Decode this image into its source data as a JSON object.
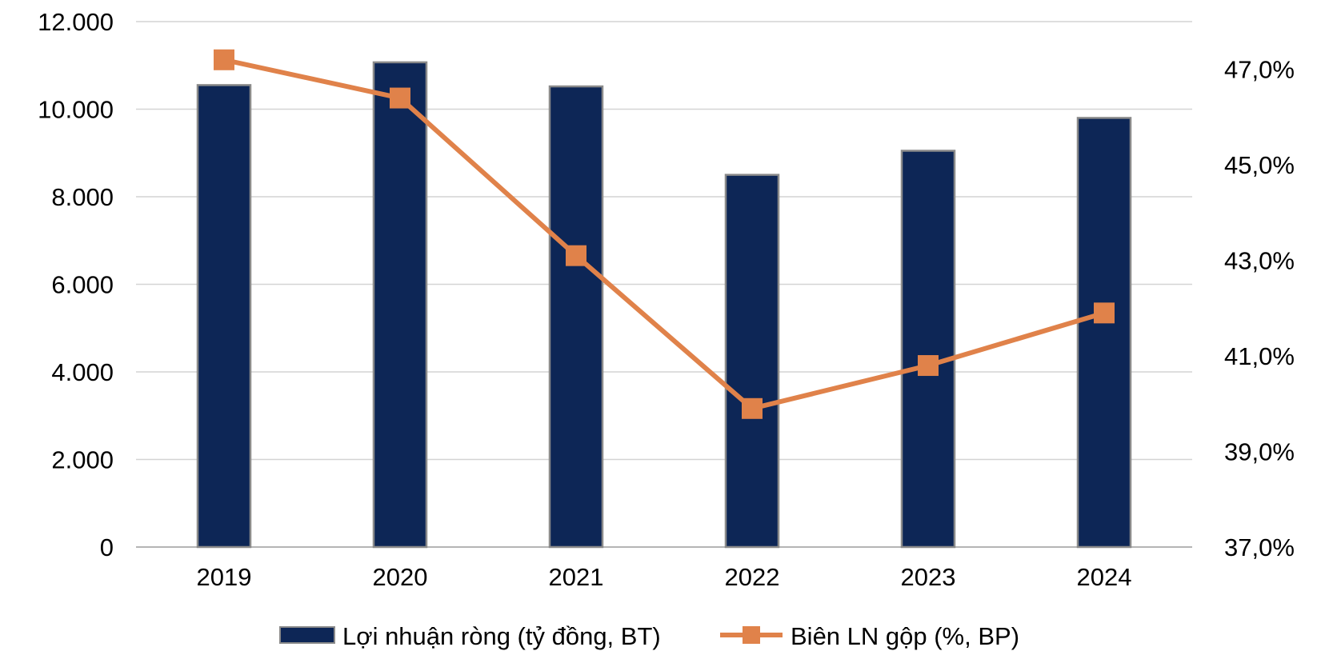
{
  "chart_data": {
    "type": "bar",
    "categories": [
      "2019",
      "2020",
      "2021",
      "2022",
      "2023",
      "2024"
    ],
    "series": [
      {
        "name": "Lợi nhuận ròng (tỷ đồng, BT)",
        "type": "bar",
        "axis": "left",
        "color": "#0d2656",
        "values": [
          10550,
          11070,
          10520,
          8500,
          9050,
          9800
        ]
      },
      {
        "name": "Biên LN gộp (%, BP)",
        "type": "line",
        "axis": "right",
        "color": "#e0824a",
        "values": [
          47.2,
          46.4,
          43.1,
          39.9,
          40.8,
          41.9
        ]
      }
    ],
    "y_left": {
      "ylim": [
        0,
        12000
      ],
      "ticks": [
        "0",
        "2.000",
        "4.000",
        "6.000",
        "8.000",
        "10.000",
        "12.000"
      ]
    },
    "y_right": {
      "ylim": [
        37,
        48
      ],
      "ticks": [
        "37,0%",
        "39,0%",
        "41,0%",
        "43,0%",
        "45,0%",
        "47,0%"
      ],
      "tick_values": [
        37,
        39,
        41,
        43,
        45,
        47
      ]
    },
    "grid": true,
    "legend_position": "bottom"
  }
}
